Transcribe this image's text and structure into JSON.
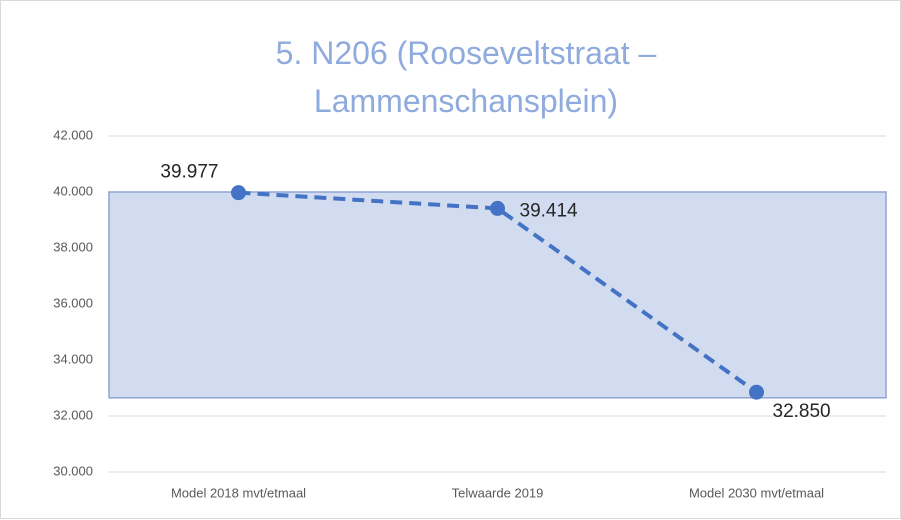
{
  "chart_data": {
    "type": "line",
    "title": "5. N206 (Rooseveltstraat – Lammenschansplein)",
    "categories": [
      "Model 2018 mvt/etmaal",
      "Telwaarde 2019",
      "Model 2030 mvt/etmaal"
    ],
    "series": [
      {
        "color": "#4472c4",
        "values": [
          39977,
          39414,
          32850
        ],
        "value_labels": [
          "39.977",
          "39.414",
          "32.850"
        ]
      }
    ],
    "shaded_range": {
      "ylim": [
        32650,
        40000
      ],
      "color": "#d2dcf0",
      "edge_color": "#8ea4d2"
    },
    "ylim": [
      30000,
      42000
    ],
    "yticks": [
      {
        "value": 30000,
        "label": "30.000"
      },
      {
        "value": 32000,
        "label": "32.000"
      },
      {
        "value": 34000,
        "label": "34.000"
      },
      {
        "value": 36000,
        "label": "36.000"
      },
      {
        "value": 38000,
        "label": "38.000"
      },
      {
        "value": 40000,
        "label": "40.000"
      },
      {
        "value": 42000,
        "label": "42.000"
      }
    ],
    "grid": true,
    "line_style": "dashed"
  }
}
